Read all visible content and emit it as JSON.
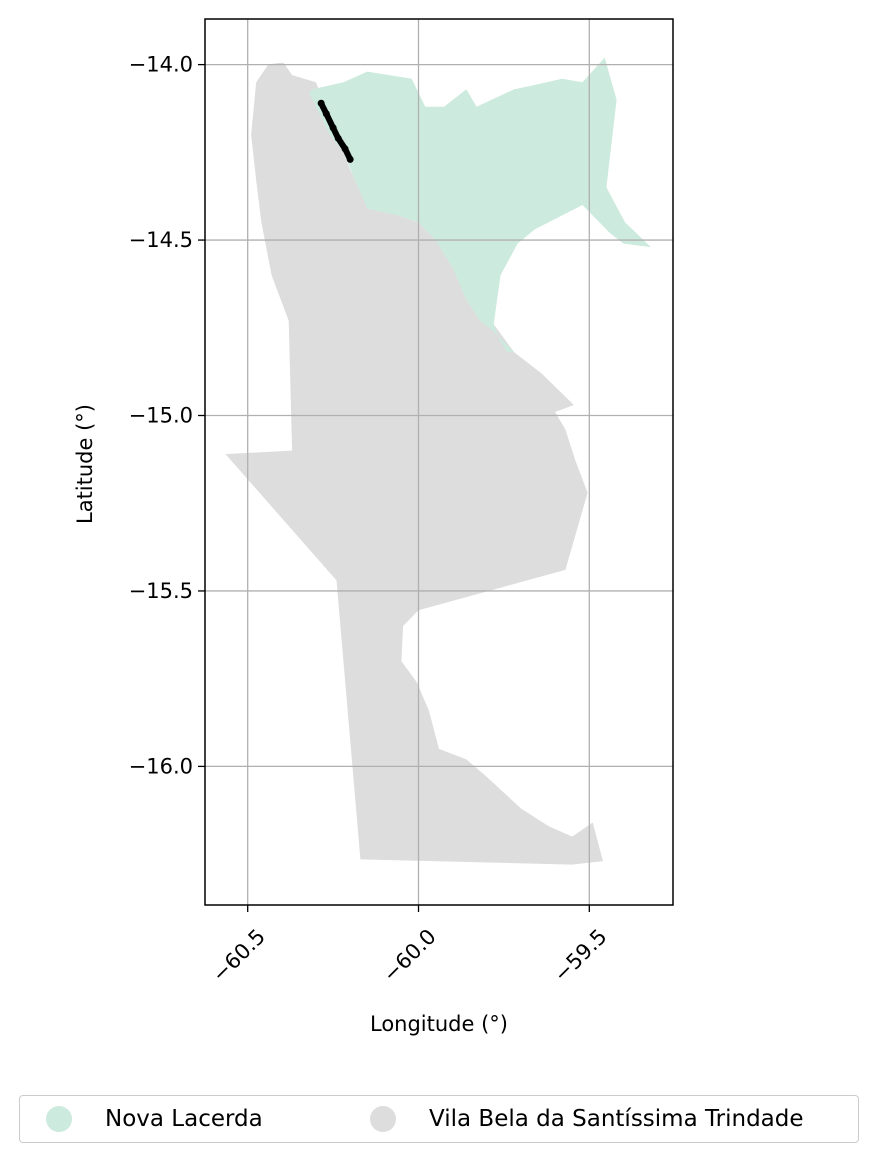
{
  "map": {
    "xlabel": "Longitude (°)",
    "ylabel": "Latitude (°)",
    "x_range": [
      -60.625,
      -59.255
    ],
    "y_range": [
      -16.395,
      -13.87
    ],
    "x_ticks": [
      -60.5,
      -60.0,
      -59.5
    ],
    "x_tick_labels": [
      "−60.5",
      "−60.0",
      "−59.5"
    ],
    "y_ticks": [
      -14.0,
      -14.5,
      -15.0,
      -15.5,
      -16.0
    ],
    "y_tick_labels": [
      "−14.0",
      "−14.5",
      "−15.0",
      "−15.5",
      "−16.0"
    ],
    "grid": true,
    "regions": [
      {
        "name": "Vila Bela da Santíssima Trindade",
        "color": "#dddddd",
        "outline": [
          [
            -60.395,
            -13.995
          ],
          [
            -60.37,
            -14.03
          ],
          [
            -60.3,
            -14.05
          ],
          [
            -60.2,
            -14.3
          ],
          [
            -60.15,
            -14.4
          ],
          [
            -60.0,
            -14.45
          ],
          [
            -59.9,
            -14.55
          ],
          [
            -59.78,
            -14.74
          ],
          [
            -59.72,
            -14.82
          ],
          [
            -59.64,
            -14.88
          ],
          [
            -59.545,
            -14.97
          ],
          [
            -59.6,
            -14.99
          ],
          [
            -59.57,
            -15.04
          ],
          [
            -59.54,
            -15.13
          ],
          [
            -59.505,
            -15.22
          ],
          [
            -59.57,
            -15.44
          ],
          [
            -60.0,
            -15.555
          ],
          [
            -60.045,
            -15.6
          ],
          [
            -60.05,
            -15.7
          ],
          [
            -60.005,
            -15.76
          ],
          [
            -59.97,
            -15.84
          ],
          [
            -59.94,
            -15.95
          ],
          [
            -59.86,
            -15.98
          ],
          [
            -59.8,
            -16.03
          ],
          [
            -59.7,
            -16.12
          ],
          [
            -59.62,
            -16.17
          ],
          [
            -59.55,
            -16.2
          ],
          [
            -59.49,
            -16.16
          ],
          [
            -59.46,
            -16.27
          ],
          [
            -59.55,
            -16.28
          ],
          [
            -60.17,
            -16.265
          ],
          [
            -60.24,
            -15.47
          ],
          [
            -60.565,
            -15.11
          ],
          [
            -60.37,
            -15.1
          ],
          [
            -60.38,
            -14.73
          ],
          [
            -60.43,
            -14.6
          ],
          [
            -60.46,
            -14.45
          ],
          [
            -60.475,
            -14.33
          ],
          [
            -60.49,
            -14.2
          ],
          [
            -60.475,
            -14.05
          ],
          [
            -60.44,
            -14.0
          ],
          [
            -60.41,
            -13.995
          ]
        ]
      },
      {
        "name": "Nova Lacerda",
        "color": "#cdeade",
        "outline": [
          [
            -60.31,
            -14.07
          ],
          [
            -60.22,
            -14.05
          ],
          [
            -60.15,
            -14.02
          ],
          [
            -60.02,
            -14.04
          ],
          [
            -59.98,
            -14.12
          ],
          [
            -59.925,
            -14.12
          ],
          [
            -59.86,
            -14.07
          ],
          [
            -59.83,
            -14.12
          ],
          [
            -59.72,
            -14.07
          ],
          [
            -59.67,
            -14.06
          ],
          [
            -59.58,
            -14.04
          ],
          [
            -59.52,
            -14.05
          ],
          [
            -59.455,
            -13.98
          ],
          [
            -59.42,
            -14.1
          ],
          [
            -59.45,
            -14.35
          ],
          [
            -59.395,
            -14.45
          ],
          [
            -59.32,
            -14.52
          ],
          [
            -59.4,
            -14.51
          ],
          [
            -59.44,
            -14.48
          ],
          [
            -59.52,
            -14.4
          ],
          [
            -59.6,
            -14.44
          ],
          [
            -59.66,
            -14.47
          ],
          [
            -59.71,
            -14.51
          ],
          [
            -59.76,
            -14.6
          ],
          [
            -59.77,
            -14.67
          ],
          [
            -59.78,
            -14.74
          ],
          [
            -59.76,
            -14.79
          ],
          [
            -59.74,
            -14.82
          ],
          [
            -59.72,
            -14.82
          ],
          [
            -59.78,
            -14.76
          ],
          [
            -59.82,
            -14.73
          ],
          [
            -59.86,
            -14.67
          ],
          [
            -59.9,
            -14.58
          ],
          [
            -59.95,
            -14.5
          ],
          [
            -60.0,
            -14.45
          ],
          [
            -60.06,
            -14.43
          ],
          [
            -60.15,
            -14.41
          ],
          [
            -60.19,
            -14.32
          ],
          [
            -60.22,
            -14.25
          ],
          [
            -60.26,
            -14.2
          ],
          [
            -60.3,
            -14.12
          ],
          [
            -60.32,
            -14.08
          ]
        ]
      }
    ],
    "track": {
      "color": "#000000",
      "points": [
        [
          -60.285,
          -14.11
        ],
        [
          -60.27,
          -14.14
        ],
        [
          -60.25,
          -14.18
        ],
        [
          -60.235,
          -14.21
        ],
        [
          -60.215,
          -14.24
        ],
        [
          -60.2,
          -14.27
        ]
      ]
    }
  },
  "legend": {
    "items": [
      {
        "label": "Nova Lacerda",
        "color": "#cdeade"
      },
      {
        "label": "Vila Bela da Santíssima Trindade",
        "color": "#dddddd"
      }
    ]
  }
}
